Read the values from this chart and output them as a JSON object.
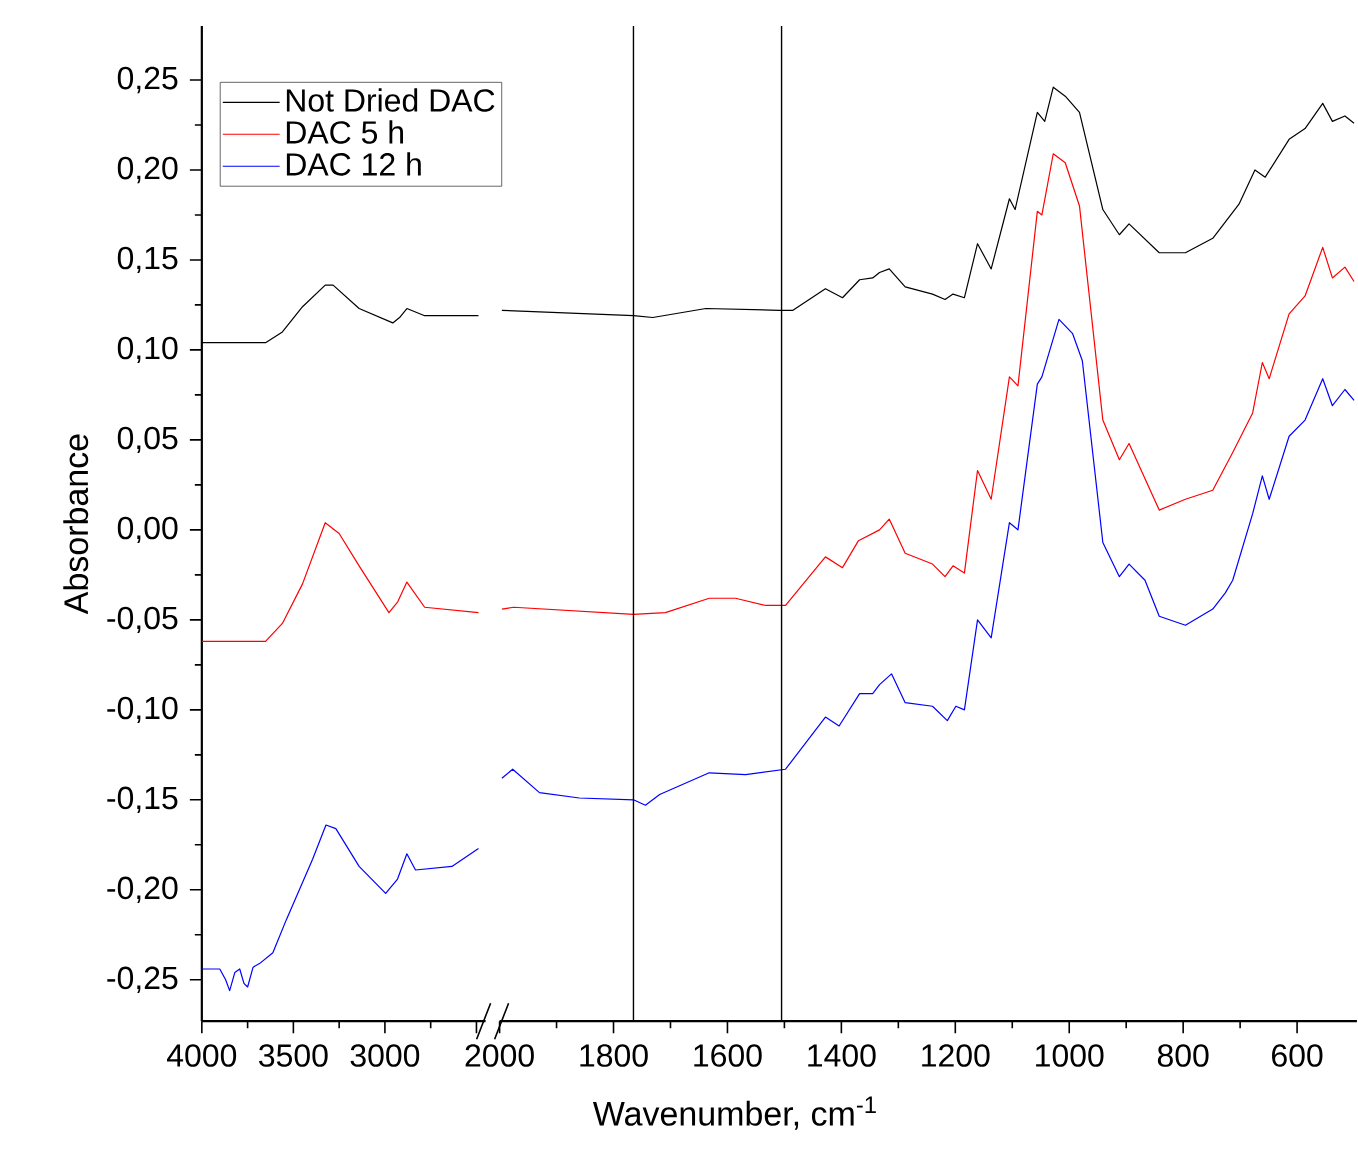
{
  "chart_data": [
    {
      "type": "line",
      "ylabel": "Absorbance",
      "xlim": [
        4000,
        2450
      ],
      "ylim": [
        -0.273,
        0.28
      ],
      "xticks": [
        4000,
        3500,
        3000,
        {
          "value": 2500,
          "label": null
        }
      ],
      "yticks": [
        {
          "value": -0.25,
          "label": "-0,25"
        },
        {
          "value": -0.2,
          "label": "-0,20"
        },
        {
          "value": -0.15,
          "label": "-0,15"
        },
        {
          "value": -0.1,
          "label": "-0,10"
        },
        {
          "value": -0.05,
          "label": "-0,05"
        },
        {
          "value": 0,
          "label": "0,00"
        },
        {
          "value": 0.05,
          "label": "0,05"
        },
        {
          "value": 0.1,
          "label": "0,10"
        },
        {
          "value": 0.15,
          "label": "0,15"
        },
        {
          "value": 0.2,
          "label": "0,20"
        },
        {
          "value": 0.25,
          "label": "0,25"
        }
      ],
      "series": [
        {
          "color": "#000000",
          "x": [
            4000,
            3652,
            3560,
            3450,
            3326,
            3283,
            3141,
            2957,
            2920,
            2880,
            2783,
            2489
          ],
          "values": [
            0.104,
            0.104,
            0.11,
            0.124,
            0.136,
            0.136,
            0.123,
            0.115,
            0.118,
            0.123,
            0.119,
            0.119
          ]
        },
        {
          "color": "#ff0000",
          "x": [
            4000,
            3652,
            3560,
            3450,
            3326,
            3250,
            3141,
            2978,
            2930,
            2880,
            2783,
            2489
          ],
          "values": [
            -0.062,
            -0.062,
            -0.052,
            -0.03,
            0.004,
            -0.002,
            -0.02,
            -0.046,
            -0.04,
            -0.029,
            -0.043,
            -0.046
          ]
        },
        {
          "color": "#0000ff",
          "x": [
            4000,
            3902,
            3870,
            3848,
            3820,
            3793,
            3770,
            3750,
            3720,
            3685,
            3612,
            3540,
            3395,
            3322,
            3268,
            3141,
            2996,
            2931,
            2880,
            2833,
            2634,
            2489
          ],
          "values": [
            -0.244,
            -0.244,
            -0.25,
            -0.256,
            -0.246,
            -0.244,
            -0.252,
            -0.254,
            -0.243,
            -0.241,
            -0.235,
            -0.217,
            -0.183,
            -0.164,
            -0.166,
            -0.187,
            -0.202,
            -0.194,
            -0.18,
            -0.189,
            -0.187,
            -0.177
          ]
        }
      ]
    },
    {
      "type": "line",
      "xlabel": "Wavenumber, cm$^{-1}$",
      "xlim": [
        2000,
        495
      ],
      "ylim": [
        -0.273,
        0.28
      ],
      "tick_labels": "x",
      "xticks": [
        2000,
        1800,
        1600,
        1400,
        1200,
        1000,
        800,
        600
      ],
      "ref_lines": [
        {
          "axis": "x",
          "value": 1765,
          "color": "#000000"
        },
        {
          "axis": "x",
          "value": 1505,
          "color": "#000000"
        }
      ],
      "legend": "top left",
      "series": [
        {
          "name": "Not Dried DAC",
          "color": "#000000",
          "x": [
            1996,
            1765,
            1731,
            1638,
            1509,
            1485,
            1428,
            1398,
            1368,
            1345,
            1333,
            1316,
            1288,
            1240,
            1218,
            1204,
            1184,
            1161,
            1137,
            1105,
            1095,
            1056,
            1043,
            1028,
            1007,
            982,
            941,
            912,
            895,
            842,
            796,
            748,
            702,
            674,
            656,
            614,
            586,
            555,
            538,
            516,
            500
          ],
          "values": [
            0.122,
            0.119,
            0.118,
            0.123,
            0.122,
            0.122,
            0.134,
            0.129,
            0.139,
            0.14,
            0.143,
            0.145,
            0.135,
            0.131,
            0.128,
            0.131,
            0.129,
            0.159,
            0.145,
            0.184,
            0.178,
            0.232,
            0.227,
            0.246,
            0.241,
            0.232,
            0.178,
            0.164,
            0.17,
            0.154,
            0.154,
            0.162,
            0.181,
            0.2,
            0.196,
            0.217,
            0.223,
            0.237,
            0.227,
            0.23,
            0.226
          ]
        },
        {
          "name": "DAC 5 h",
          "color": "#ff0000",
          "x": [
            1996,
            1975,
            1765,
            1709,
            1632,
            1586,
            1533,
            1498,
            1428,
            1398,
            1370,
            1333,
            1316,
            1288,
            1240,
            1218,
            1204,
            1184,
            1161,
            1137,
            1105,
            1090,
            1056,
            1048,
            1028,
            1007,
            982,
            941,
            912,
            895,
            842,
            796,
            748,
            713,
            678,
            661,
            649,
            614,
            586,
            555,
            538,
            516,
            500
          ],
          "values": [
            -0.044,
            -0.043,
            -0.047,
            -0.046,
            -0.038,
            -0.038,
            -0.042,
            -0.042,
            -0.015,
            -0.021,
            -0.006,
            0.0,
            0.006,
            -0.013,
            -0.019,
            -0.026,
            -0.02,
            -0.024,
            0.033,
            0.017,
            0.085,
            0.08,
            0.177,
            0.175,
            0.209,
            0.204,
            0.18,
            0.061,
            0.039,
            0.048,
            0.011,
            0.017,
            0.022,
            0.043,
            0.065,
            0.093,
            0.084,
            0.12,
            0.13,
            0.157,
            0.14,
            0.146,
            0.138
          ]
        },
        {
          "name": "DAC 12 h",
          "color": "#0000ff",
          "x": [
            1996,
            1977,
            1930,
            1860,
            1765,
            1744,
            1719,
            1632,
            1568,
            1498,
            1428,
            1404,
            1368,
            1345,
            1333,
            1312,
            1288,
            1240,
            1214,
            1199,
            1184,
            1161,
            1137,
            1105,
            1090,
            1056,
            1048,
            1018,
            994,
            977,
            941,
            912,
            895,
            867,
            842,
            796,
            748,
            726,
            713,
            678,
            661,
            649,
            614,
            586,
            555,
            538,
            516,
            500
          ],
          "values": [
            -0.138,
            -0.133,
            -0.146,
            -0.149,
            -0.15,
            -0.153,
            -0.147,
            -0.135,
            -0.136,
            -0.133,
            -0.104,
            -0.109,
            -0.091,
            -0.091,
            -0.086,
            -0.08,
            -0.096,
            -0.098,
            -0.106,
            -0.098,
            -0.1,
            -0.05,
            -0.06,
            0.004,
            0.0,
            0.081,
            0.085,
            0.117,
            0.109,
            0.094,
            -0.007,
            -0.026,
            -0.019,
            -0.028,
            -0.048,
            -0.053,
            -0.044,
            -0.035,
            -0.028,
            0.009,
            0.03,
            0.017,
            0.052,
            0.061,
            0.084,
            0.069,
            0.078,
            0.072
          ]
        }
      ]
    }
  ]
}
